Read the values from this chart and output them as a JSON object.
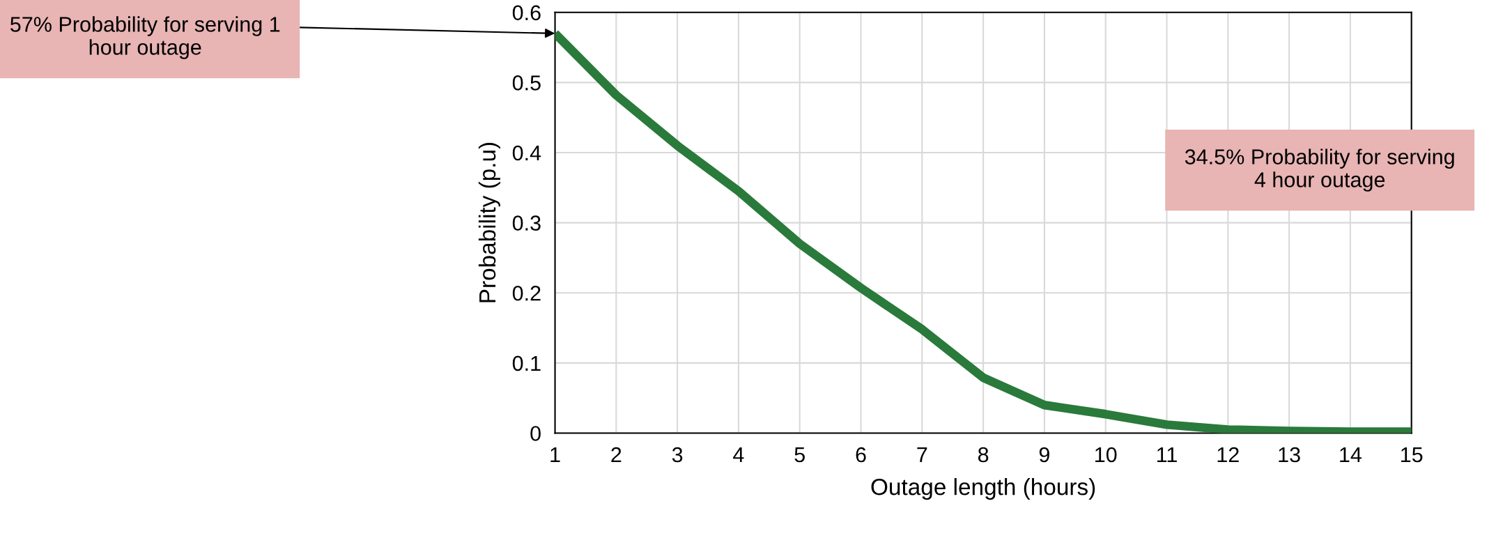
{
  "chart_data": {
    "type": "line",
    "xlabel": "Outage length (hours)",
    "ylabel": "Probability (p.u)",
    "x": [
      1,
      2,
      3,
      4,
      5,
      6,
      7,
      8,
      9,
      10,
      11,
      12,
      13,
      14,
      15
    ],
    "series": [
      {
        "color": "#2a7a3b",
        "values": [
          0.57,
          0.482,
          0.41,
          0.345,
          0.27,
          0.207,
          0.148,
          0.079,
          0.04,
          0.027,
          0.012,
          0.005,
          0.003,
          0.002,
          0.002
        ]
      }
    ],
    "xlim": [
      1,
      15
    ],
    "xticks": [
      1,
      2,
      3,
      4,
      5,
      6,
      7,
      8,
      9,
      10,
      11,
      12,
      13,
      14,
      15
    ],
    "ylim": [
      0,
      0.6
    ],
    "yticks": [
      0,
      0.1,
      0.2,
      0.3,
      0.4,
      0.5,
      0.6
    ],
    "grid": true,
    "legend": false,
    "annotations": [
      {
        "text": "57% Probability for serving 1\nhour outage",
        "x": 1,
        "y": 0.57
      },
      "34.5% Probability for serving\n4 hour outage"
    ]
  }
}
